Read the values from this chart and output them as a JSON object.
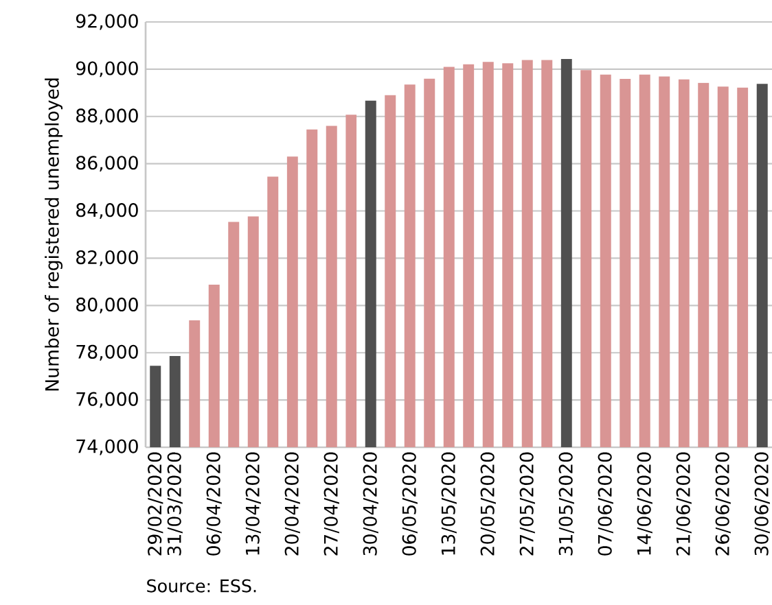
{
  "chart_data": {
    "type": "bar",
    "ylabel": "Number of registered unemployed",
    "categories": [
      "29/02/2020",
      "31/03/2020",
      null,
      "06/04/2020",
      null,
      "13/04/2020",
      null,
      "20/04/2020",
      null,
      "27/04/2020",
      null,
      "30/04/2020",
      null,
      "06/05/2020",
      null,
      "13/05/2020",
      null,
      "20/05/2020",
      null,
      "27/05/2020",
      null,
      "31/05/2020",
      null,
      "07/06/2020",
      null,
      "14/06/2020",
      null,
      "21/06/2020",
      null,
      "26/06/2020",
      null,
      "30/06/2020"
    ],
    "values": [
      77450,
      77860,
      79370,
      80880,
      83540,
      83770,
      85450,
      86300,
      87450,
      87600,
      88070,
      88670,
      88900,
      89350,
      89600,
      90100,
      90210,
      90310,
      90250,
      90390,
      90390,
      90430,
      89960,
      89770,
      89590,
      89770,
      89690,
      89570,
      89420,
      89260,
      89220,
      89380
    ],
    "colors": [
      "#505050",
      "#505050",
      "#d99594",
      "#d99594",
      "#d99594",
      "#d99594",
      "#d99594",
      "#d99594",
      "#d99594",
      "#d99594",
      "#d99594",
      "#505050",
      "#d99594",
      "#d99594",
      "#d99594",
      "#d99594",
      "#d99594",
      "#d99594",
      "#d99594",
      "#d99594",
      "#d99594",
      "#505050",
      "#d99594",
      "#d99594",
      "#d99594",
      "#d99594",
      "#d99594",
      "#d99594",
      "#d99594",
      "#d99594",
      "#d99594",
      "#505050"
    ],
    "ylim": [
      74000,
      92000
    ],
    "yticks": [
      {
        "value": 74000,
        "label": "74,000"
      },
      {
        "value": 76000,
        "label": "76,000"
      },
      {
        "value": 78000,
        "label": "78,000"
      },
      {
        "value": 80000,
        "label": "80,000"
      },
      {
        "value": 82000,
        "label": "82,000"
      },
      {
        "value": 84000,
        "label": "84,000"
      },
      {
        "value": 86000,
        "label": "86,000"
      },
      {
        "value": 88000,
        "label": "88,000"
      },
      {
        "value": 90000,
        "label": "90,000"
      },
      {
        "value": 92000,
        "label": "92,000"
      }
    ],
    "grid": "y",
    "annotations": [
      "Source: ESS."
    ]
  }
}
